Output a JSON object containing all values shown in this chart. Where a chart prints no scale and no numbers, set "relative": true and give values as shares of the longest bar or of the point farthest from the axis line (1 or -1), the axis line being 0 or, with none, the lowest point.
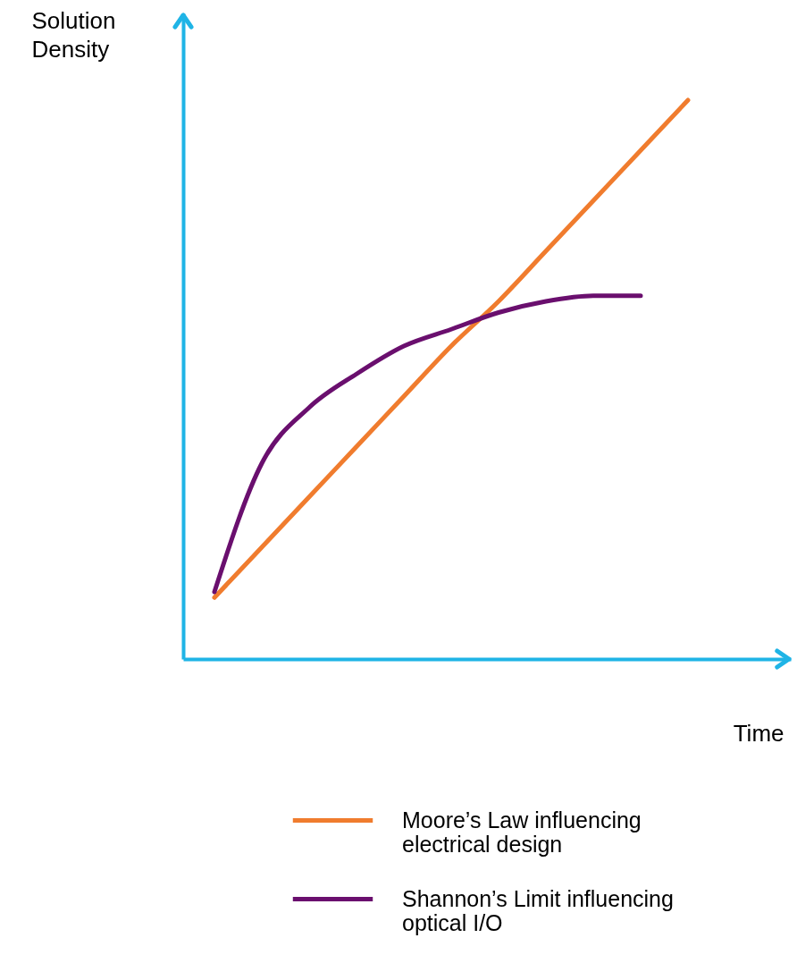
{
  "chart_data": {
    "type": "line",
    "relative": true,
    "xlabel": "Time",
    "ylabel": "Solution Density",
    "categories": [
      null,
      null,
      null,
      null,
      null,
      null,
      null,
      null,
      null,
      null,
      null
    ],
    "series": [
      {
        "name": "Moore’s Law influencing electrical design",
        "color": "#f07c2e",
        "values": [
          0.11,
          0.2,
          0.29,
          0.38,
          0.47,
          0.56,
          0.64,
          0.73,
          0.82,
          0.91,
          1.0
        ]
      },
      {
        "name": "Shannon’s Limit influencing optical I/O",
        "color": "#6a0f6e",
        "values": [
          0.12,
          0.35,
          0.45,
          0.51,
          0.56,
          0.59,
          0.62,
          0.64,
          0.65,
          0.65,
          null
        ]
      }
    ],
    "legend": "bottom",
    "grid": false,
    "marker": "none",
    "line_style": "solid"
  }
}
